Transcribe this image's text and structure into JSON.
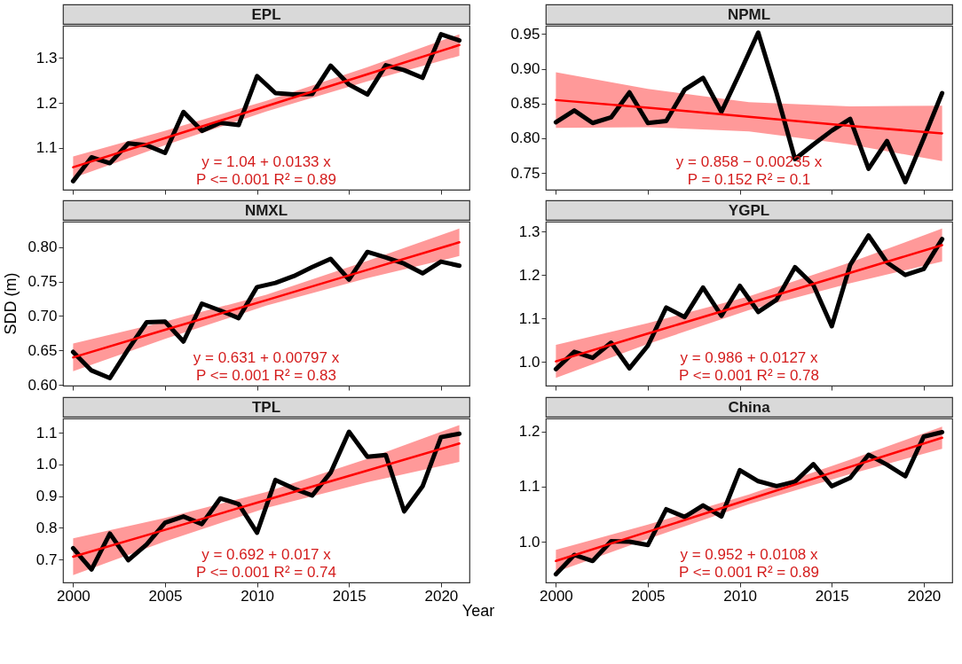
{
  "chart_data": [
    {
      "type": "line",
      "title": "EPL",
      "xlim": [
        1999.45,
        2021.55
      ],
      "xticks": [
        2000,
        2005,
        2010,
        2015,
        2020
      ],
      "ylim": [
        1.007,
        1.372
      ],
      "yticks": [
        1.1,
        1.2,
        1.3
      ],
      "tick_labels": "y",
      "annotations": [
        "y = 1.04 + 0.0133 x",
        "P <= 0.001  R² = 0.89"
      ],
      "series": [
        {
          "color": "#000000",
          "x": [
            2000,
            2001,
            2002,
            2003,
            2004,
            2005,
            2006,
            2007,
            2008,
            2009,
            2010,
            2011,
            2012,
            2013,
            2014,
            2015,
            2016,
            2017,
            2018,
            2019,
            2020,
            2021
          ],
          "values": [
            1.026,
            1.079,
            1.066,
            1.11,
            1.106,
            1.089,
            1.18,
            1.138,
            1.156,
            1.151,
            1.26,
            1.222,
            1.219,
            1.22,
            1.283,
            1.241,
            1.219,
            1.284,
            1.273,
            1.256,
            1.353,
            1.339
          ]
        },
        {
          "type": "line",
          "color": "#ff0000",
          "x": [
            2000,
            2005,
            2010.5,
            2016,
            2021
          ],
          "values": [
            1.057,
            1.122,
            1.193,
            1.264,
            1.329
          ],
          "lower": [
            1.033,
            1.106,
            1.181,
            1.248,
            1.305
          ],
          "upper": [
            1.081,
            1.138,
            1.205,
            1.28,
            1.353
          ]
        }
      ]
    },
    {
      "type": "line",
      "title": "NPML",
      "xlim": [
        1999.45,
        2021.55
      ],
      "xticks": [
        2000,
        2005,
        2010,
        2015,
        2020
      ],
      "ylim": [
        0.726,
        0.962
      ],
      "yticks": [
        {
          "value": 0.75,
          "label": "0.75"
        },
        {
          "value": 0.8,
          "label": "0.80"
        },
        {
          "value": 0.85,
          "label": "0.85"
        },
        {
          "value": 0.9,
          "label": "0.90"
        },
        {
          "value": 0.95,
          "label": "0.95"
        }
      ],
      "tick_labels": "y",
      "annotations": [
        "y = 0.858 − 0.00235 x",
        "P = 0.152  R² = 0.1"
      ],
      "series": [
        {
          "color": "#000000",
          "x": [
            2000,
            2001,
            2002,
            2003,
            2004,
            2005,
            2006,
            2007,
            2008,
            2009,
            2010,
            2011,
            2012,
            2013,
            2014,
            2015,
            2016,
            2017,
            2018,
            2019,
            2020,
            2021
          ],
          "values": [
            0.823,
            0.84,
            0.822,
            0.83,
            0.866,
            0.822,
            0.825,
            0.87,
            0.887,
            0.838,
            0.894,
            0.952,
            0.865,
            0.77,
            0.791,
            0.811,
            0.828,
            0.756,
            0.796,
            0.737,
            0.8,
            0.865
          ]
        },
        {
          "type": "line",
          "color": "#ff0000",
          "x": [
            2000,
            2005,
            2010.5,
            2016,
            2021
          ],
          "values": [
            0.855,
            0.844,
            0.831,
            0.818,
            0.807
          ],
          "lower": [
            0.815,
            0.816,
            0.81,
            0.791,
            0.767
          ],
          "upper": [
            0.895,
            0.871,
            0.852,
            0.846,
            0.847
          ]
        }
      ]
    },
    {
      "type": "line",
      "title": "NMXL",
      "ylabel": "SDD (m)",
      "xlim": [
        1999.45,
        2021.55
      ],
      "xticks": [
        2000,
        2005,
        2010,
        2015,
        2020
      ],
      "ylim": [
        0.599,
        0.837
      ],
      "yticks": [
        {
          "value": 0.6,
          "label": "0.60"
        },
        {
          "value": 0.65,
          "label": "0.65"
        },
        {
          "value": 0.7,
          "label": "0.70"
        },
        {
          "value": 0.75,
          "label": "0.75"
        },
        {
          "value": 0.8,
          "label": "0.80"
        }
      ],
      "tick_labels": "y",
      "annotations": [
        "y = 0.631 + 0.00797 x",
        "P <= 0.001  R² = 0.83"
      ],
      "series": [
        {
          "color": "#000000",
          "x": [
            2000,
            2001,
            2002,
            2003,
            2004,
            2005,
            2006,
            2007,
            2008,
            2009,
            2010,
            2011,
            2012,
            2013,
            2014,
            2015,
            2016,
            2017,
            2018,
            2019,
            2020,
            2021
          ],
          "values": [
            0.648,
            0.621,
            0.61,
            0.652,
            0.691,
            0.692,
            0.663,
            0.718,
            0.708,
            0.697,
            0.742,
            0.748,
            0.758,
            0.771,
            0.783,
            0.753,
            0.793,
            0.785,
            0.776,
            0.762,
            0.779,
            0.773
          ]
        },
        {
          "type": "line",
          "color": "#ff0000",
          "x": [
            2000,
            2005,
            2010.5,
            2016,
            2021
          ],
          "values": [
            0.64,
            0.68,
            0.723,
            0.767,
            0.807
          ],
          "lower": [
            0.62,
            0.667,
            0.715,
            0.755,
            0.787
          ],
          "upper": [
            0.66,
            0.692,
            0.731,
            0.78,
            0.827
          ]
        }
      ]
    },
    {
      "type": "line",
      "title": "YGPL",
      "xlim": [
        1999.45,
        2021.55
      ],
      "xticks": [
        2000,
        2005,
        2010,
        2015,
        2020
      ],
      "ylim": [
        0.945,
        1.323
      ],
      "yticks": [
        {
          "value": 1.0,
          "label": "1.0"
        },
        1.1,
        1.2,
        1.3
      ],
      "tick_labels": "y",
      "annotations": [
        "y = 0.986 + 0.0127 x",
        "P <= 0.001  R² = 0.78"
      ],
      "series": [
        {
          "color": "#000000",
          "x": [
            2000,
            2001,
            2002,
            2003,
            2004,
            2005,
            2006,
            2007,
            2008,
            2009,
            2010,
            2011,
            2012,
            2013,
            2014,
            2015,
            2016,
            2017,
            2018,
            2019,
            2020,
            2021
          ],
          "values": [
            0.983,
            1.023,
            1.009,
            1.044,
            0.985,
            1.037,
            1.125,
            1.103,
            1.171,
            1.106,
            1.175,
            1.115,
            1.143,
            1.218,
            1.177,
            1.082,
            1.223,
            1.291,
            1.229,
            1.2,
            1.214,
            1.283
          ]
        },
        {
          "type": "line",
          "color": "#ff0000",
          "x": [
            2000,
            2005,
            2010.5,
            2016,
            2021
          ],
          "values": [
            1.001,
            1.065,
            1.135,
            1.205,
            1.269
          ],
          "lower": [
            0.963,
            1.041,
            1.119,
            1.181,
            1.231
          ],
          "upper": [
            1.039,
            1.089,
            1.151,
            1.229,
            1.307
          ]
        }
      ]
    },
    {
      "type": "line",
      "title": "TPL",
      "xlabel": "Year",
      "xlim": [
        1999.45,
        2021.55
      ],
      "xticks": [
        2000,
        2005,
        2010,
        2015,
        2020
      ],
      "ylim": [
        0.628,
        1.145
      ],
      "yticks": [
        0.7,
        0.8,
        0.9,
        {
          "value": 1.0,
          "label": "1.0"
        },
        1.1
      ],
      "annotations": [
        "y = 0.692 + 0.017 x",
        "P <= 0.001  R² = 0.74"
      ],
      "series": [
        {
          "color": "#000000",
          "x": [
            2000,
            2001,
            2002,
            2003,
            2004,
            2005,
            2006,
            2007,
            2008,
            2009,
            2010,
            2011,
            2012,
            2013,
            2014,
            2015,
            2016,
            2017,
            2018,
            2019,
            2020,
            2021
          ],
          "values": [
            0.736,
            0.669,
            0.782,
            0.698,
            0.748,
            0.816,
            0.836,
            0.812,
            0.893,
            0.875,
            0.785,
            0.951,
            0.924,
            0.902,
            0.974,
            1.103,
            1.024,
            1.03,
            0.852,
            0.931,
            1.086,
            1.097
          ]
        },
        {
          "type": "line",
          "color": "#ff0000",
          "x": [
            2000,
            2005,
            2010.5,
            2016,
            2021
          ],
          "values": [
            0.709,
            0.794,
            0.888,
            0.981,
            1.066
          ],
          "lower": [
            0.651,
            0.757,
            0.863,
            0.944,
            1.008
          ],
          "upper": [
            0.767,
            0.831,
            0.913,
            1.018,
            1.124
          ]
        }
      ]
    },
    {
      "type": "line",
      "title": "China",
      "xlim": [
        1999.45,
        2021.55
      ],
      "xticks": [
        2000,
        2005,
        2010,
        2015,
        2020
      ],
      "ylim": [
        0.926,
        1.224
      ],
      "yticks": [
        {
          "value": 1.0,
          "label": "1.0"
        },
        1.1,
        1.2
      ],
      "annotations": [
        "y = 0.952 + 0.0108 x",
        "P <= 0.001  R² = 0.89"
      ],
      "series": [
        {
          "color": "#000000",
          "x": [
            2000,
            2001,
            2002,
            2003,
            2004,
            2005,
            2006,
            2007,
            2008,
            2009,
            2010,
            2011,
            2012,
            2013,
            2014,
            2015,
            2016,
            2017,
            2018,
            2019,
            2020,
            2021
          ],
          "values": [
            0.941,
            0.976,
            0.965,
            1.001,
            1.0,
            0.994,
            1.059,
            1.045,
            1.066,
            1.046,
            1.13,
            1.11,
            1.101,
            1.109,
            1.141,
            1.101,
            1.116,
            1.158,
            1.14,
            1.119,
            1.191,
            1.199
          ]
        },
        {
          "type": "line",
          "color": "#ff0000",
          "x": [
            2000,
            2005,
            2010.5,
            2016,
            2021
          ],
          "values": [
            0.965,
            1.018,
            1.077,
            1.136,
            1.189
          ],
          "lower": [
            0.945,
            1.005,
            1.068,
            1.123,
            1.169
          ],
          "upper": [
            0.985,
            1.031,
            1.086,
            1.149,
            1.209
          ]
        }
      ]
    }
  ]
}
